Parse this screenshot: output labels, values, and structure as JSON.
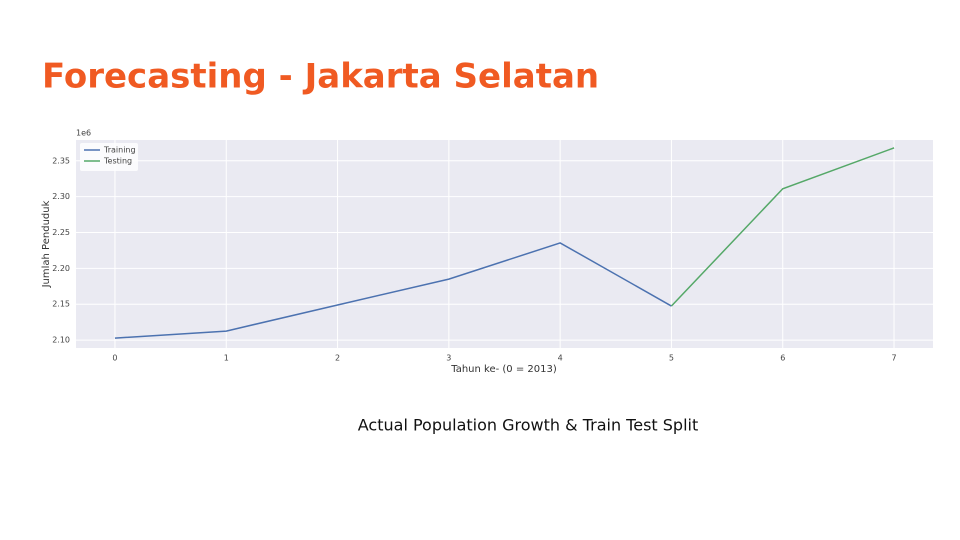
{
  "slide_title": "Forecasting - Jakarta Selatan",
  "caption": "Actual Population Growth & Train Test Split",
  "chart_data": {
    "type": "line",
    "x_label": "Tahun ke- (0 = 2013)",
    "y_label": "Jumlah Penduduk",
    "y_multiplier": "1e6",
    "x": [
      0,
      1,
      2,
      3,
      4,
      5,
      6,
      7
    ],
    "series": [
      {
        "name": "Training",
        "color": "#4c72b0",
        "values": [
          2.1028,
          2.1126,
          2.149,
          2.185,
          2.2355,
          2.1475,
          null,
          null
        ]
      },
      {
        "name": "Testing",
        "color": "#55a868",
        "values": [
          null,
          null,
          null,
          null,
          null,
          2.1475,
          2.311,
          2.368
        ]
      }
    ],
    "xlim": [
      -0.35,
      7.35
    ],
    "ylim": [
      2.089,
      2.379
    ],
    "xticks": [
      0,
      1,
      2,
      3,
      4,
      5,
      6,
      7
    ],
    "yticks": [
      {
        "value": 2.1,
        "label": "2.10"
      },
      2.15,
      {
        "value": 2.2,
        "label": "2.20"
      },
      2.25,
      {
        "value": 2.3,
        "label": "2.30"
      },
      2.35
    ],
    "grid": true,
    "legend": "upper-left"
  }
}
